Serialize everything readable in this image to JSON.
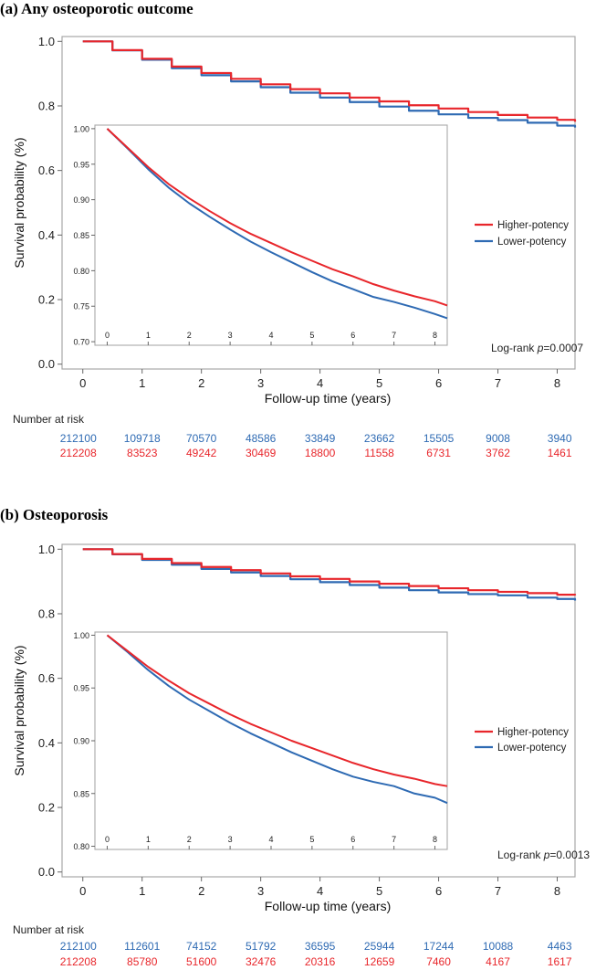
{
  "colors": {
    "higher": "#e8262b",
    "lower": "#2e6ab3",
    "frame": "#a8a8a8"
  },
  "chart_data": [
    {
      "type": "line",
      "panel_title": "(a) Any osteoporotic outcome",
      "ylabel": "Survival probability (%)",
      "xlabel": "Follow-up time (years)",
      "xlim": [
        -0.35,
        8.3
      ],
      "ylim": [
        -0.015,
        1.015
      ],
      "x_ticks": [
        "0",
        "1",
        "2",
        "3",
        "4",
        "5",
        "6",
        "7",
        "8"
      ],
      "y_ticks": [
        "0.0",
        "0.2",
        "0.4",
        "0.6",
        "0.8",
        "1.0"
      ],
      "series": [
        {
          "name": "Higher-potency",
          "x": [
            0,
            0.5,
            1,
            1.5,
            2,
            2.5,
            3,
            3.5,
            4,
            4.5,
            5,
            5.5,
            6,
            6.5,
            7,
            7.5,
            8,
            8.3
          ],
          "values": [
            1.0,
            0.973,
            0.946,
            0.922,
            0.902,
            0.884,
            0.867,
            0.852,
            0.839,
            0.826,
            0.814,
            0.802,
            0.792,
            0.781,
            0.772,
            0.764,
            0.757,
            0.751
          ]
        },
        {
          "name": "Lower-potency",
          "x": [
            0,
            0.5,
            1,
            1.5,
            2,
            2.5,
            3,
            3.5,
            4,
            4.5,
            5,
            5.5,
            6,
            6.5,
            7,
            7.5,
            8,
            8.3
          ],
          "values": [
            1.0,
            0.972,
            0.943,
            0.917,
            0.895,
            0.876,
            0.858,
            0.841,
            0.826,
            0.812,
            0.798,
            0.785,
            0.774,
            0.763,
            0.756,
            0.748,
            0.739,
            0.733
          ]
        }
      ],
      "inset": {
        "xlim": [
          -0.3,
          8.3
        ],
        "ylim": [
          0.695,
          1.005
        ],
        "x_ticks": [
          "0",
          "1",
          "2",
          "3",
          "4",
          "5",
          "6",
          "7",
          "8"
        ],
        "y_ticks": [
          "0.70",
          "0.75",
          "0.80",
          "0.85",
          "0.90",
          "0.95",
          "1.00"
        ]
      },
      "legend": [
        "Higher-potency",
        "Lower-potency"
      ],
      "logrank_prefix": "Log-rank ",
      "logrank_p_symbol": "p",
      "logrank_value": "=0.0007",
      "number_at_risk_title": "Number at risk",
      "number_at_risk": {
        "Lower-potency": [
          "212100",
          "109718",
          "70570",
          "48586",
          "33849",
          "23662",
          "15505",
          "9008",
          "3940"
        ],
        "Higher-potency": [
          "212208",
          "83523",
          "49242",
          "30469",
          "18800",
          "11558",
          "6731",
          "3762",
          "1461"
        ]
      }
    },
    {
      "type": "line",
      "panel_title": "(b) Osteoporosis",
      "ylabel": "Survival probability (%)",
      "xlabel": "Follow-up time (years)",
      "xlim": [
        -0.35,
        8.3
      ],
      "ylim": [
        -0.015,
        1.015
      ],
      "x_ticks": [
        "0",
        "1",
        "2",
        "3",
        "4",
        "5",
        "6",
        "7",
        "8"
      ],
      "y_ticks": [
        "0.0",
        "0.2",
        "0.4",
        "0.6",
        "0.8",
        "1.0"
      ],
      "series": [
        {
          "name": "Higher-potency",
          "x": [
            0,
            0.5,
            1,
            1.5,
            2,
            2.5,
            3,
            3.5,
            4,
            4.5,
            5,
            5.5,
            6,
            6.5,
            7,
            7.5,
            8,
            8.3
          ],
          "values": [
            1.0,
            0.985,
            0.97,
            0.957,
            0.945,
            0.935,
            0.925,
            0.916,
            0.908,
            0.9,
            0.893,
            0.886,
            0.879,
            0.873,
            0.868,
            0.864,
            0.859,
            0.857
          ]
        },
        {
          "name": "Lower-potency",
          "x": [
            0,
            0.5,
            1,
            1.5,
            2,
            2.5,
            3,
            3.5,
            4,
            4.5,
            5,
            5.5,
            6,
            6.5,
            7,
            7.5,
            8,
            8.3
          ],
          "values": [
            1.0,
            0.984,
            0.967,
            0.952,
            0.939,
            0.928,
            0.917,
            0.907,
            0.898,
            0.889,
            0.881,
            0.873,
            0.866,
            0.861,
            0.857,
            0.85,
            0.846,
            0.841
          ]
        }
      ],
      "inset": {
        "xlim": [
          -0.3,
          8.3
        ],
        "ylim": [
          0.797,
          1.003
        ],
        "x_ticks": [
          "0",
          "1",
          "2",
          "3",
          "4",
          "5",
          "6",
          "7",
          "8"
        ],
        "y_ticks": [
          "0.80",
          "0.85",
          "0.90",
          "0.95",
          "1.00"
        ]
      },
      "legend": [
        "Higher-potency",
        "Lower-potency"
      ],
      "logrank_prefix": "Log-rank ",
      "logrank_p_symbol": "p",
      "logrank_value": "=0.0013",
      "number_at_risk_title": "Number at risk",
      "number_at_risk": {
        "Lower-potency": [
          "212100",
          "112601",
          "74152",
          "51792",
          "36595",
          "25944",
          "17244",
          "10088",
          "4463"
        ],
        "Higher-potency": [
          "212208",
          "85780",
          "51600",
          "32476",
          "20316",
          "12659",
          "7460",
          "4167",
          "1617"
        ]
      }
    }
  ]
}
